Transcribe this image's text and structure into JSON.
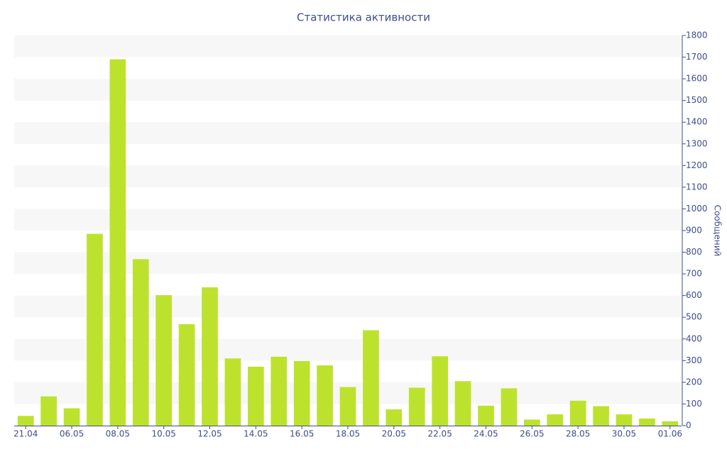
{
  "chart_data": {
    "type": "bar",
    "title": "Статистика активности",
    "y_label": "Сообщений",
    "categories": [
      "21.04",
      null,
      "06.05",
      null,
      "08.05",
      null,
      "10.05",
      null,
      "12.05",
      null,
      "14.05",
      null,
      "16.05",
      null,
      "18.05",
      null,
      "20.05",
      null,
      "22.05",
      null,
      "24.05",
      null,
      "26.05",
      null,
      "28.05",
      null,
      "30.05",
      null,
      "01.06"
    ],
    "values": [
      45,
      135,
      80,
      885,
      1690,
      768,
      602,
      468,
      638,
      310,
      272,
      318,
      298,
      278,
      178,
      440,
      75,
      175,
      320,
      205,
      92,
      172,
      28,
      52,
      115,
      90,
      52,
      33,
      20
    ],
    "color": "#bde22e",
    "ylim": [
      0,
      1800
    ],
    "yticks": [
      0,
      100,
      200,
      300,
      400,
      500,
      600,
      700,
      800,
      900,
      1000,
      1100,
      1200,
      1300,
      1400,
      1500,
      1600,
      1700,
      1800
    ],
    "grid": true
  }
}
